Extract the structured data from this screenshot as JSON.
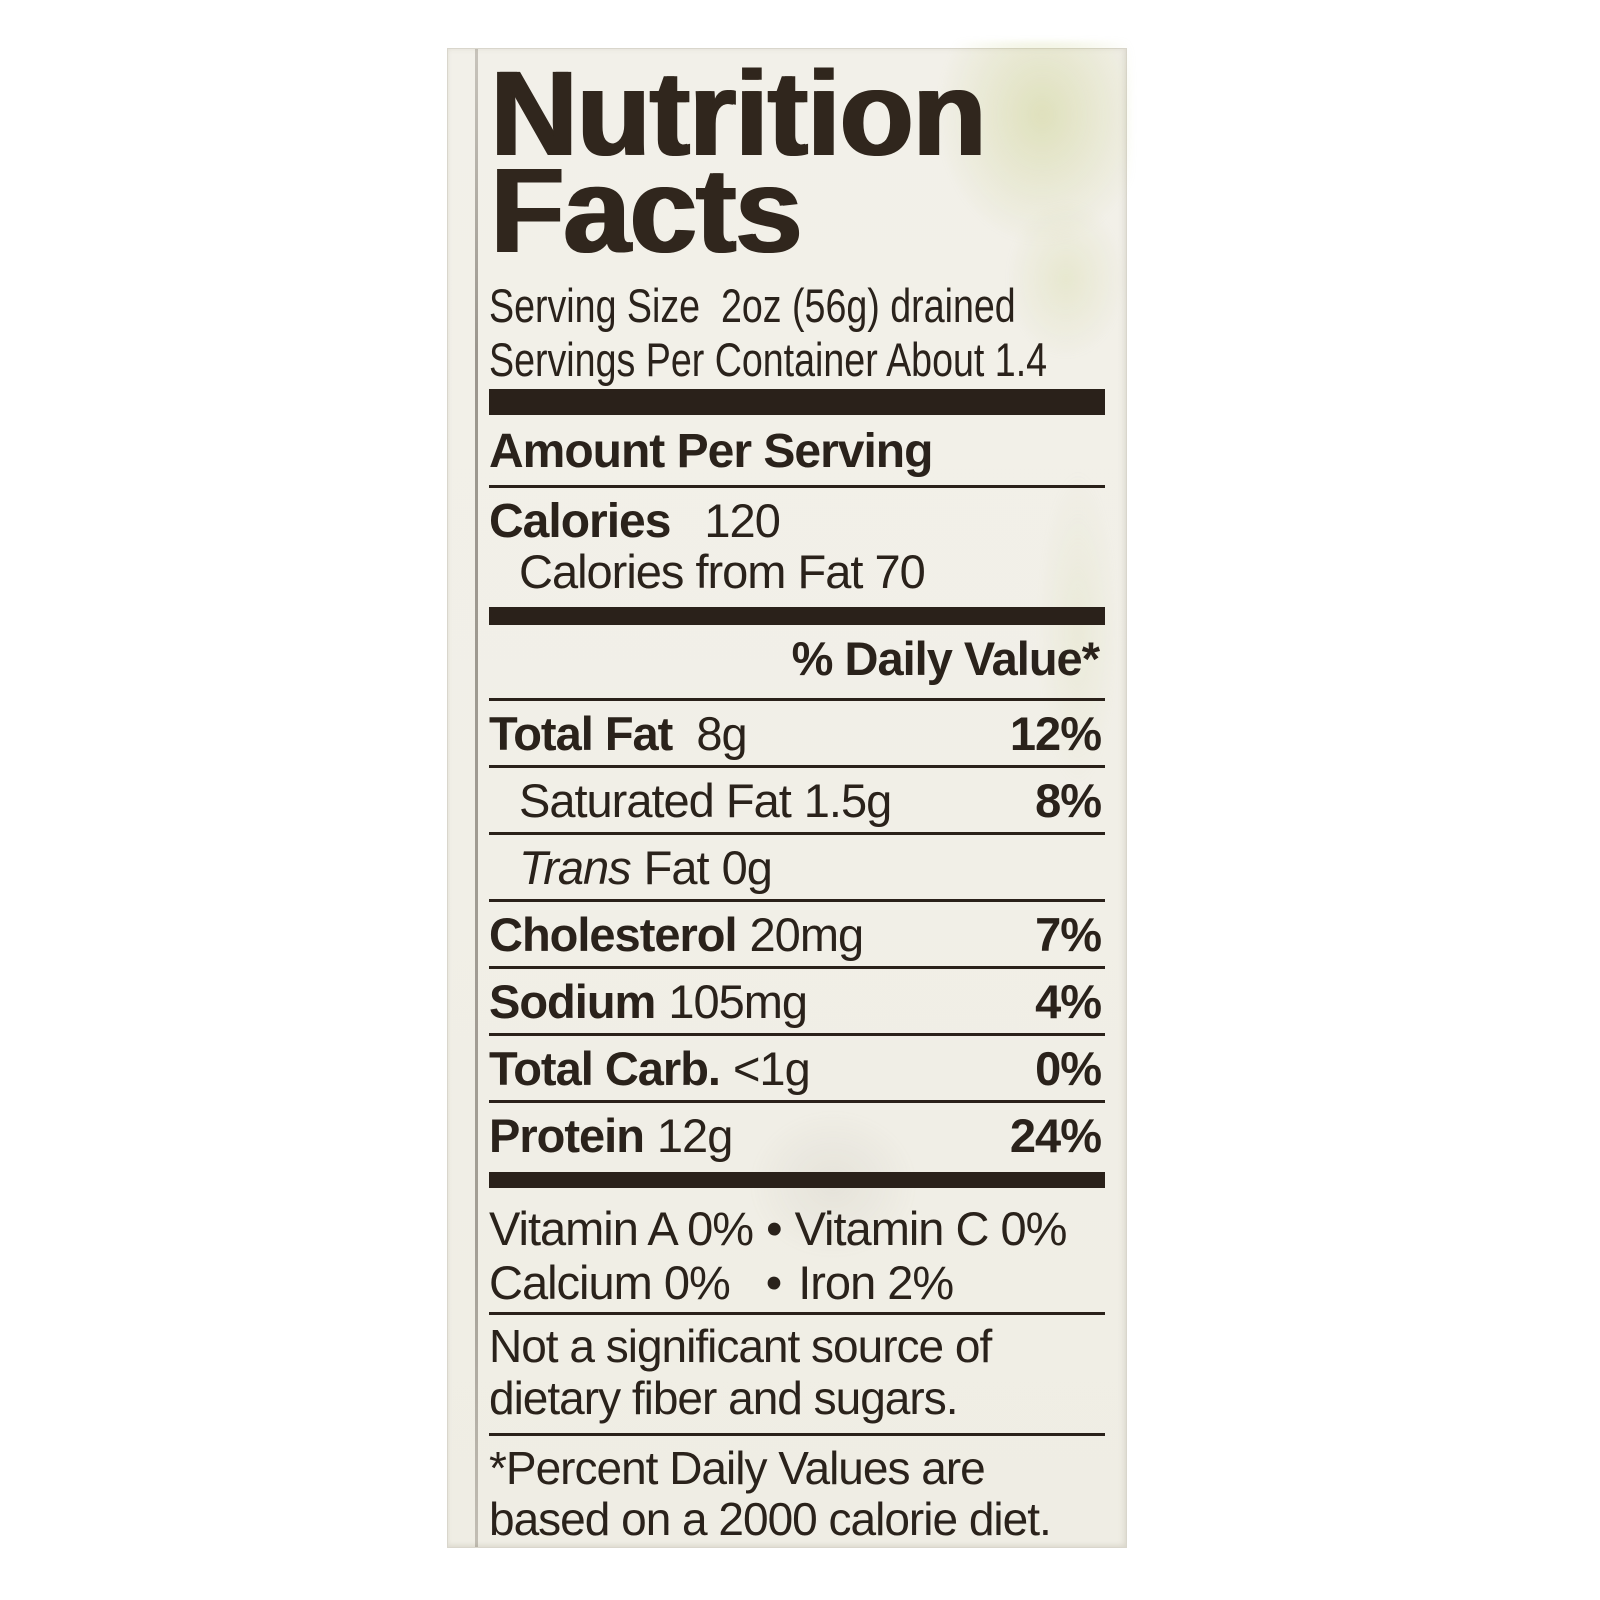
{
  "colors": {
    "page_background": "#ffffff",
    "label_background": "#f1efe7",
    "ink": "#2a221b"
  },
  "label": {
    "title_line1": "Nutrition",
    "title_line2": "Facts",
    "serving_size": "Serving Size  2oz (56g) drained",
    "servings_per_container": "Servings Per Container About 1.4",
    "amount_per_serving": "Amount Per Serving",
    "calories": {
      "label": "Calories",
      "value": "120",
      "from_fat": "Calories from Fat 70"
    },
    "daily_value_header": "% Daily Value*",
    "nutrients": [
      {
        "name": "Total Fat",
        "amount": "8g",
        "daily_value": "12%"
      },
      {
        "name": "Saturated Fat",
        "amount": "1.5g",
        "daily_value": "8%"
      },
      {
        "name": "Trans",
        "name_rest": "Fat",
        "amount": "0g",
        "daily_value": ""
      },
      {
        "name": "Cholesterol",
        "amount": "20mg",
        "daily_value": "7%"
      },
      {
        "name": "Sodium",
        "amount": "105mg",
        "daily_value": "4%"
      },
      {
        "name": "Total Carb.",
        "amount": "<1g",
        "daily_value": "0%"
      },
      {
        "name": "Protein",
        "amount": "12g",
        "daily_value": "24%"
      }
    ],
    "bullet": "•",
    "vitamins": [
      {
        "left": "Vitamin A 0%",
        "right": "Vitamin C 0%"
      },
      {
        "left": "Calcium 0%",
        "right": "Iron 2%"
      }
    ],
    "note_line1": "Not a significant source of",
    "note_line2": "dietary fiber and sugars.",
    "footnote_line1": "*Percent Daily Values are",
    "footnote_line2": "based on a 2000 calorie diet."
  }
}
